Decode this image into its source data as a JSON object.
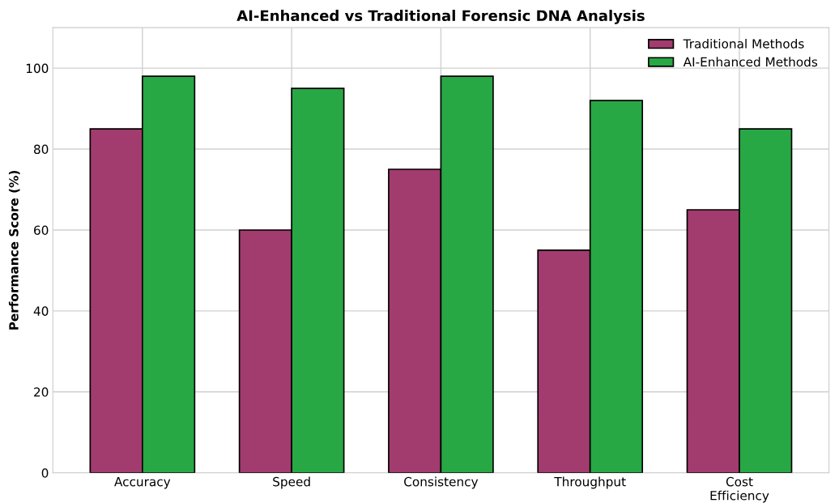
{
  "chart_data": {
    "type": "bar",
    "title": "AI-Enhanced vs Traditional Forensic DNA Analysis",
    "ylabel": "Performance Score (%)",
    "categories": [
      "Accuracy",
      "Speed",
      "Consistency",
      "Throughput",
      "Cost\nEfficiency"
    ],
    "series": [
      {
        "name": "Traditional Methods",
        "color": "#a23b6e",
        "values": [
          85,
          60,
          75,
          55,
          65
        ]
      },
      {
        "name": "AI-Enhanced Methods",
        "color": "#28a745",
        "values": [
          98,
          95,
          98,
          92,
          85
        ]
      }
    ],
    "ylim": [
      0,
      110
    ],
    "yticks": [
      0,
      20,
      40,
      60,
      80,
      100
    ],
    "grid": true,
    "legend": "top right"
  }
}
